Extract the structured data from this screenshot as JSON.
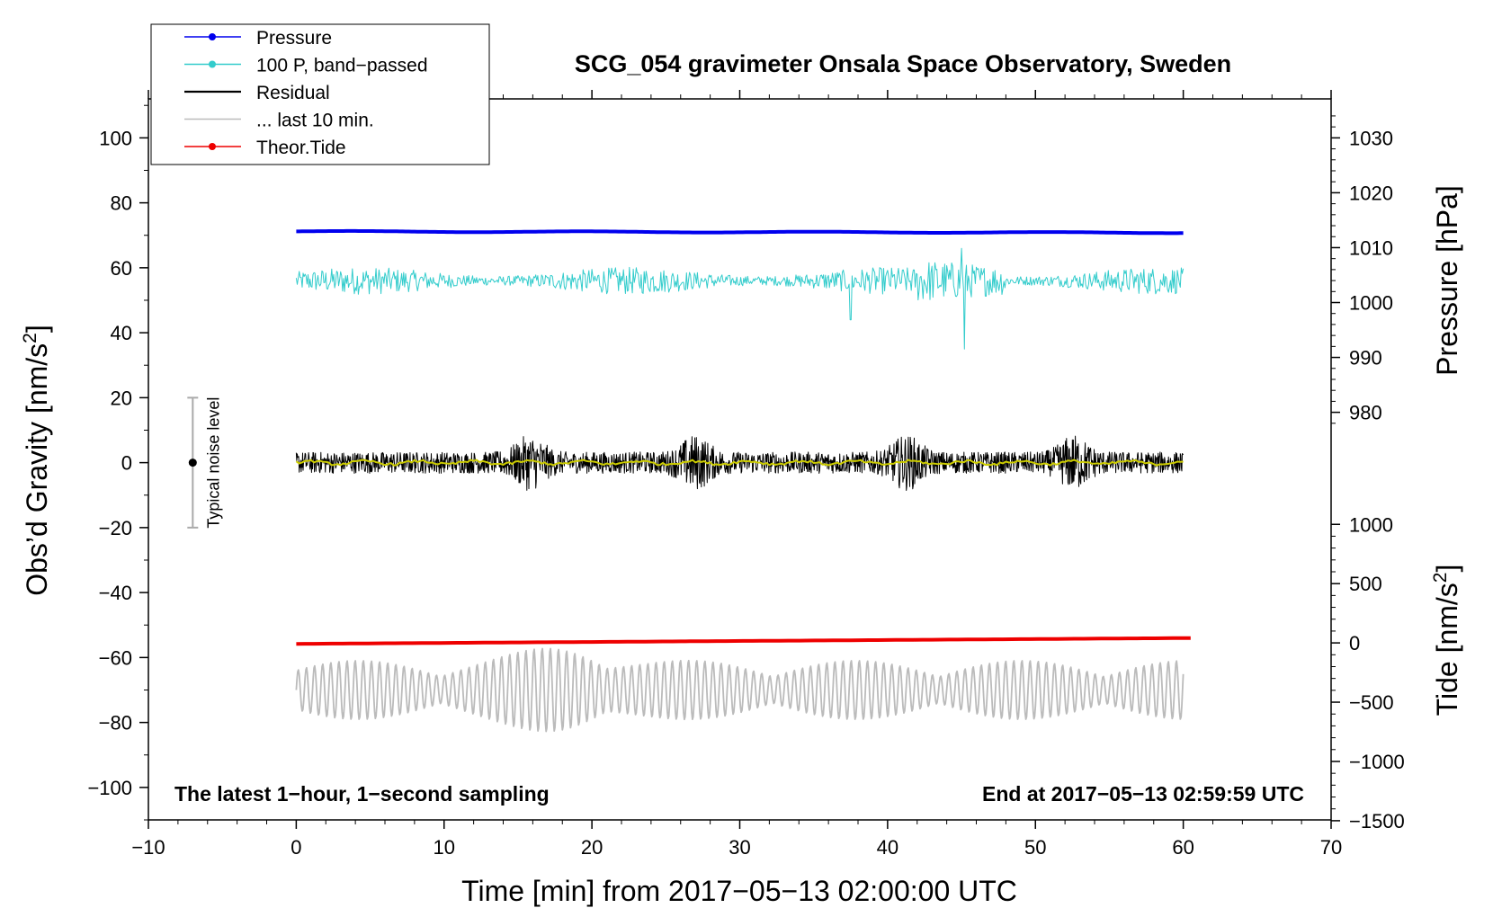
{
  "chart_data": {
    "type": "line",
    "title": "SCG_054 gravimeter Onsala Space Observatory, Sweden",
    "xlabel": "Time [min] from 2017−05−13 02:00:00 UTC",
    "ylabel_left": "Obs’d Gravity [nm/s",
    "ylabel_left_sup": "2",
    "ylabel_left_end": "]",
    "ylabel_pressure": "Pressure [hPa]",
    "ylabel_tide": "Tide [nm/s",
    "ylabel_tide_sup": "2",
    "ylabel_tide_end": "]",
    "xlim": [
      -10,
      70
    ],
    "ylim": [
      -110,
      112
    ],
    "xticks": [
      -10,
      0,
      10,
      20,
      30,
      40,
      50,
      60,
      70
    ],
    "xtick_labels": [
      "−10",
      "0",
      "10",
      "20",
      "30",
      "40",
      "50",
      "60",
      "70"
    ],
    "yticks": [
      100,
      80,
      60,
      40,
      20,
      0,
      -20,
      -40,
      -60,
      -80,
      -100
    ],
    "ytick_labels": [
      "100",
      "80",
      "60",
      "40",
      "20",
      "0",
      "−20",
      "−40",
      "−60",
      "−80",
      "−100"
    ],
    "pressure_axis": {
      "ticks": [
        1030,
        1020,
        1010,
        1000,
        990,
        980
      ],
      "tick_labels": [
        "1030",
        "1020",
        "1010",
        "1000",
        "990",
        "980"
      ],
      "gravity_equiv": [
        100,
        83.1,
        66.2,
        49.3,
        32.4,
        15.5
      ]
    },
    "tide_axis": {
      "ticks": [
        1000,
        500,
        0,
        -500,
        -1000,
        -1500
      ],
      "tick_labels": [
        "1000",
        "500",
        "0",
        "−500",
        "−1000",
        "−1500"
      ],
      "gravity_equiv": [
        -19,
        -37.25,
        -55.5,
        -73.75,
        -92,
        -110.25
      ]
    },
    "legend": [
      {
        "label": "Pressure",
        "color": "#0000ee",
        "marker": true
      },
      {
        "label": "100 P, band−passed",
        "color": "#33cccc",
        "marker": true
      },
      {
        "label": "Residual",
        "color": "#000000",
        "marker": false
      },
      {
        "label": "... last 10 min.",
        "color": "#bbbbbb",
        "marker": false
      },
      {
        "label": "Theor.Tide",
        "color": "#ee0000",
        "marker": true
      }
    ],
    "annotations": {
      "left": "The latest 1−hour, 1−second sampling",
      "right": "End at 2017−05−13 02:59:59 UTC",
      "noise": "Typical noise level"
    },
    "noise_bar": {
      "x": -7,
      "center": 0,
      "half_range": 20
    },
    "series": [
      {
        "name": "Pressure",
        "color": "#0000ee",
        "x_range": [
          0,
          60
        ],
        "y_start": 71.2,
        "y_end": 70.8,
        "amplitude": 0.2
      },
      {
        "name": "100 P, band-passed",
        "color": "#33cccc",
        "x_range": [
          0,
          60
        ],
        "center": 56,
        "amplitude": 3.5,
        "min": 35,
        "max": 66
      },
      {
        "name": "Residual",
        "color": "#000000",
        "x_range": [
          0,
          60
        ],
        "center": 0,
        "amplitude": 6,
        "min": -17,
        "max": 15
      },
      {
        "name": "Residual smoothed",
        "color": "#cccc00",
        "x_range": [
          0,
          60
        ],
        "center": 0,
        "amplitude": 0.8
      },
      {
        "name": "... last 10 min.",
        "color": "#bbbbbb",
        "x_range": [
          0,
          60
        ],
        "center": -70,
        "amplitude": 7,
        "min": -85,
        "max": -57
      },
      {
        "name": "Theor.Tide",
        "color": "#ee0000",
        "x_range": [
          0,
          60.5
        ],
        "y_start": -55.8,
        "y_end": -54.0
      }
    ]
  }
}
